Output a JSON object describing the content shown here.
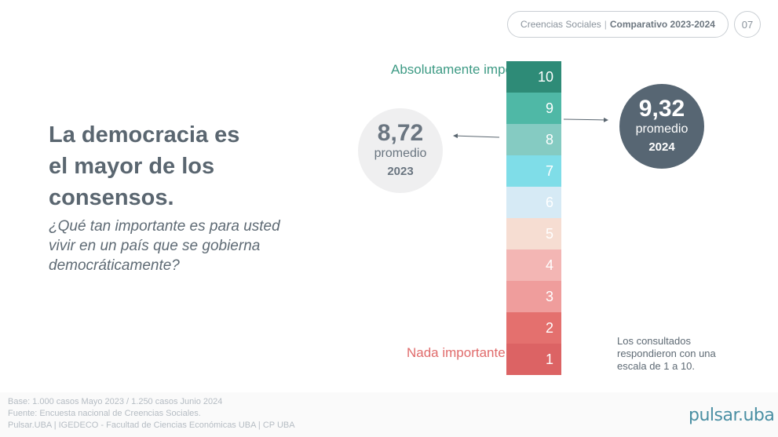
{
  "header": {
    "pill_left": "Creencias Sociales",
    "pill_separator": "|",
    "pill_right": "Comparativo 2023-2024",
    "page_number": "07"
  },
  "title_lines": [
    "La democracia es",
    "el mayor de los",
    "consensos."
  ],
  "question": "¿Qué tan importante es para usted vivir en un país que se gobierna democráticamente?",
  "chart_data": {
    "type": "table",
    "scale": [
      10,
      9,
      8,
      7,
      6,
      5,
      4,
      3,
      2,
      1
    ],
    "scale_colors": [
      "#2e8b77",
      "#4fb8a6",
      "#85cbc2",
      "#7fdde8",
      "#d6eaf5",
      "#f6ddd2",
      "#f3b6b4",
      "#ef9d9c",
      "#e4706e",
      "#dc6364"
    ],
    "label_top": "Absolutamente importante",
    "label_bottom": "Nada importante",
    "averages": [
      {
        "value": "8,72",
        "label": "promedio",
        "year": "2023"
      },
      {
        "value": "9,32",
        "label": "promedio",
        "year": "2024"
      }
    ],
    "note": "Los consultados respondieron con una escala de 1 a 10."
  },
  "footer": {
    "lines": [
      "Base: 1.000 casos Mayo 2023 / 1.250 casos  Junio 2024",
      "Fuente: Encuesta nacional de Creencias Sociales.",
      "Pulsar.UBA | IGEDECO - Facultad de Ciencias Económicas UBA | CP UBA"
    ],
    "logo": "pulsar.uba"
  }
}
